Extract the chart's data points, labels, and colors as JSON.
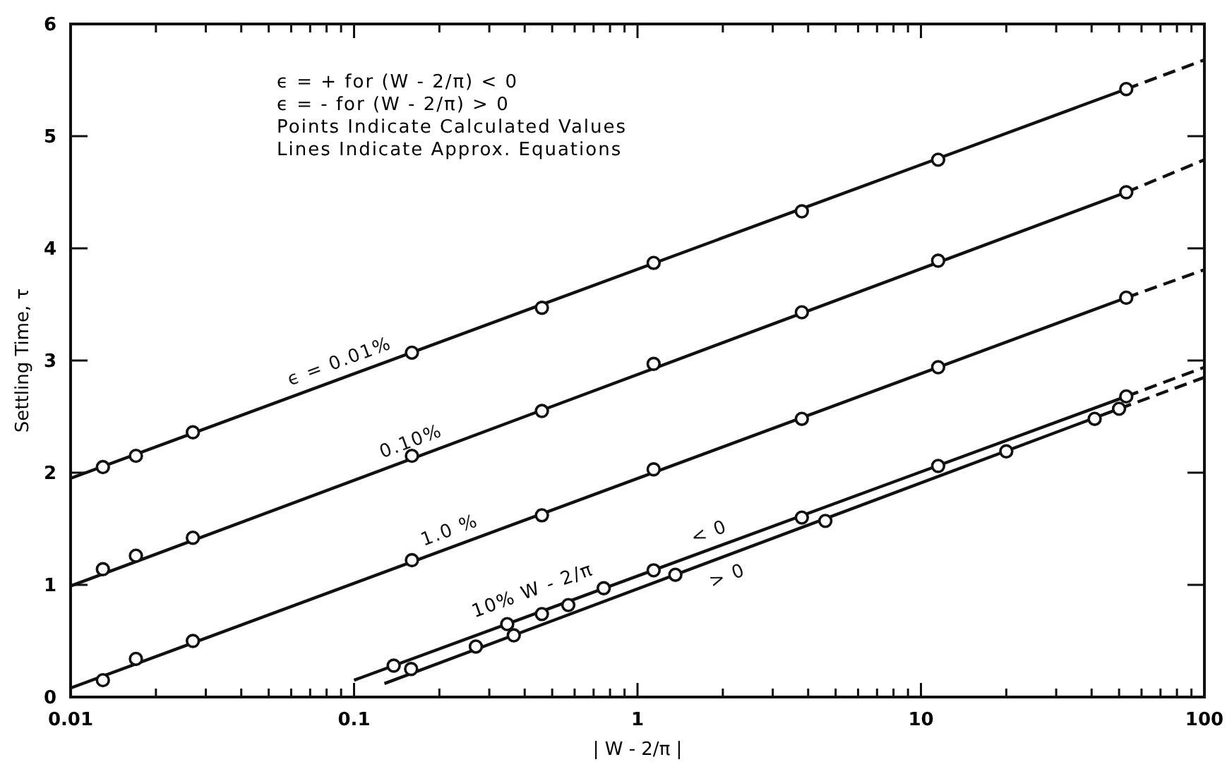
{
  "chart_data": {
    "type": "line",
    "xlabel": "| W - 2/π |",
    "ylabel": "Settling Time, τ",
    "log": "x",
    "xlim": [
      0.01,
      100
    ],
    "ylim": [
      0,
      6
    ],
    "xticks": [
      0.01,
      {
        "value": 0.02,
        "label": null
      },
      {
        "value": 0.03,
        "label": null
      },
      {
        "value": 0.04,
        "label": null
      },
      {
        "value": 0.05,
        "label": null
      },
      {
        "value": 0.06,
        "label": null
      },
      {
        "value": 0.07,
        "label": null
      },
      {
        "value": 0.08,
        "label": null
      },
      {
        "value": 0.09,
        "label": null
      },
      0.1,
      {
        "value": 0.2,
        "label": null
      },
      {
        "value": 0.3,
        "label": null
      },
      {
        "value": 0.4,
        "label": null
      },
      {
        "value": 0.5,
        "label": null
      },
      {
        "value": 0.6,
        "label": null
      },
      {
        "value": 0.7,
        "label": null
      },
      {
        "value": 0.8,
        "label": null
      },
      {
        "value": 0.9,
        "label": null
      },
      1,
      {
        "value": 2,
        "label": null
      },
      {
        "value": 3,
        "label": null
      },
      {
        "value": 4,
        "label": null
      },
      {
        "value": 5,
        "label": null
      },
      {
        "value": 6,
        "label": null
      },
      {
        "value": 7,
        "label": null
      },
      {
        "value": 8,
        "label": null
      },
      {
        "value": 9,
        "label": null
      },
      10,
      {
        "value": 20,
        "label": null
      },
      {
        "value": 30,
        "label": null
      },
      {
        "value": 40,
        "label": null
      },
      {
        "value": 50,
        "label": null
      },
      {
        "value": 60,
        "label": null
      },
      {
        "value": 70,
        "label": null
      },
      {
        "value": 80,
        "label": null
      },
      {
        "value": 90,
        "label": null
      },
      100
    ],
    "yticks": [
      0,
      1,
      2,
      3,
      4,
      5,
      6
    ],
    "grid": false,
    "series": [
      {
        "name": "ϵ = 0.01%",
        "color": "#111111",
        "line_style": "solid",
        "x": [
          0.01,
          53
        ],
        "values": [
          1.95,
          5.42
        ]
      },
      {
        "color": "#111111",
        "line_style": "dashed",
        "x": [
          53,
          100
        ],
        "values": [
          5.42,
          5.68
        ]
      },
      {
        "name": "0.10%",
        "color": "#111111",
        "line_style": "solid",
        "x": [
          0.01,
          53
        ],
        "values": [
          0.99,
          4.5
        ]
      },
      {
        "color": "#111111",
        "line_style": "dashed",
        "x": [
          53,
          100
        ],
        "values": [
          4.5,
          4.79
        ]
      },
      {
        "name": "1.0 %",
        "color": "#111111",
        "line_style": "solid",
        "x": [
          0.01,
          53
        ],
        "values": [
          0.08,
          3.56
        ]
      },
      {
        "color": "#111111",
        "line_style": "dashed",
        "x": [
          53,
          100
        ],
        "values": [
          3.56,
          3.81
        ]
      },
      {
        "name": "< 0",
        "color": "#111111",
        "line_style": "solid",
        "x": [
          0.1,
          53
        ],
        "values": [
          0.15,
          2.68
        ]
      },
      {
        "color": "#111111",
        "line_style": "dashed",
        "x": [
          53,
          100
        ],
        "values": [
          2.68,
          2.94
        ]
      },
      {
        "name": "> 0",
        "color": "#111111",
        "line_style": "solid",
        "x": [
          0.128,
          50
        ],
        "values": [
          0.12,
          2.57
        ]
      },
      {
        "color": "#111111",
        "line_style": "dashed",
        "x": [
          50,
          100
        ],
        "values": [
          2.57,
          2.85
        ]
      },
      {
        "type": "scatter",
        "color": "#111111",
        "marker": "circle",
        "x": [
          0.013,
          0.017,
          0.027,
          0.16,
          0.46,
          1.14,
          3.8,
          11.5,
          53
        ],
        "values": [
          2.05,
          2.15,
          2.36,
          3.07,
          3.47,
          3.87,
          4.33,
          4.79,
          5.42
        ]
      },
      {
        "type": "scatter",
        "color": "#111111",
        "marker": "circle",
        "x": [
          0.013,
          0.017,
          0.027,
          0.16,
          0.46,
          1.14,
          3.8,
          11.5,
          53
        ],
        "values": [
          1.14,
          1.26,
          1.42,
          2.15,
          2.55,
          2.97,
          3.43,
          3.89,
          4.5
        ]
      },
      {
        "type": "scatter",
        "color": "#111111",
        "marker": "circle",
        "x": [
          0.013,
          0.017,
          0.027,
          0.16,
          0.46,
          1.14,
          3.8,
          11.5,
          53
        ],
        "values": [
          0.15,
          0.34,
          0.5,
          1.22,
          1.62,
          2.03,
          2.48,
          2.94,
          3.56
        ]
      },
      {
        "type": "scatter",
        "color": "#111111",
        "marker": "circle",
        "x": [
          0.138,
          0.347,
          0.46,
          0.57,
          0.76,
          1.14,
          3.8,
          11.5,
          53
        ],
        "values": [
          0.28,
          0.65,
          0.74,
          0.82,
          0.97,
          1.13,
          1.6,
          2.06,
          2.68
        ]
      },
      {
        "type": "scatter",
        "color": "#111111",
        "marker": "circle",
        "x": [
          0.159,
          0.269,
          0.366,
          1.36,
          4.6,
          20,
          41,
          50
        ],
        "values": [
          0.25,
          0.45,
          0.55,
          1.09,
          1.57,
          2.19,
          2.48,
          2.57
        ]
      }
    ],
    "annotations": [
      "ϵ = + for (W - 2/π) < 0",
      "ϵ = - for (W - 2/π) > 0",
      "Points Indicate Calculated Values",
      "Lines Indicate Approx. Equations",
      "10%  W - 2/π"
    ]
  }
}
